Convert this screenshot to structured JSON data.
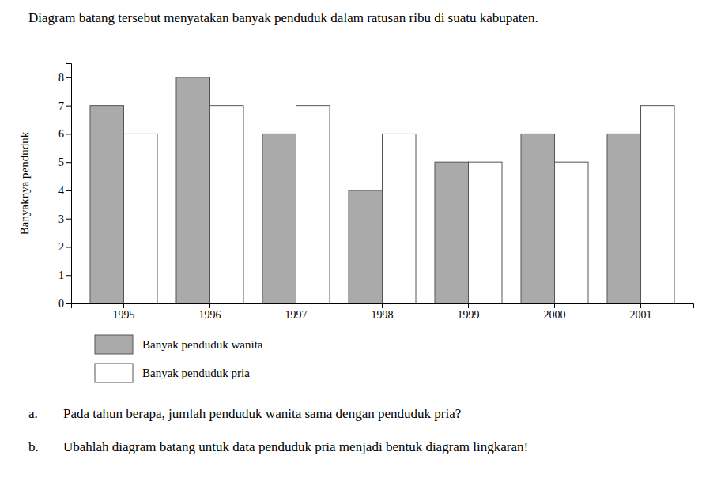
{
  "chart_data": {
    "type": "bar",
    "title": "Diagram batang tersebut menyatakan banyak penduduk dalam ratusan ribu di suatu kabupaten.",
    "y_label": "Banyaknya penduduk",
    "categories": [
      "1995",
      "1996",
      "1997",
      "1998",
      "1999",
      "2000",
      "2001"
    ],
    "series": [
      {
        "name": "Banyak penduduk wanita",
        "color": "#aaaaaa",
        "values": [
          7,
          8,
          6,
          4,
          5,
          6,
          6
        ]
      },
      {
        "name": "Banyak penduduk pria",
        "color": "#ffffff",
        "values": [
          6,
          7,
          7,
          6,
          5,
          5,
          7
        ]
      }
    ],
    "ylim": [
      0,
      8.5
    ],
    "yticks": [
      0,
      1,
      2,
      3,
      4,
      5,
      6,
      7,
      8
    ],
    "grid": false,
    "legend": "bottom",
    "annotations": [
      {
        "label": "a.",
        "text": "Pada tahun berapa, jumlah penduduk wanita sama dengan penduduk pria?"
      },
      {
        "label": "b.",
        "text": "Ubahlah diagram batang untuk data penduduk pria menjadi bentuk diagram lingkaran!"
      }
    ]
  }
}
